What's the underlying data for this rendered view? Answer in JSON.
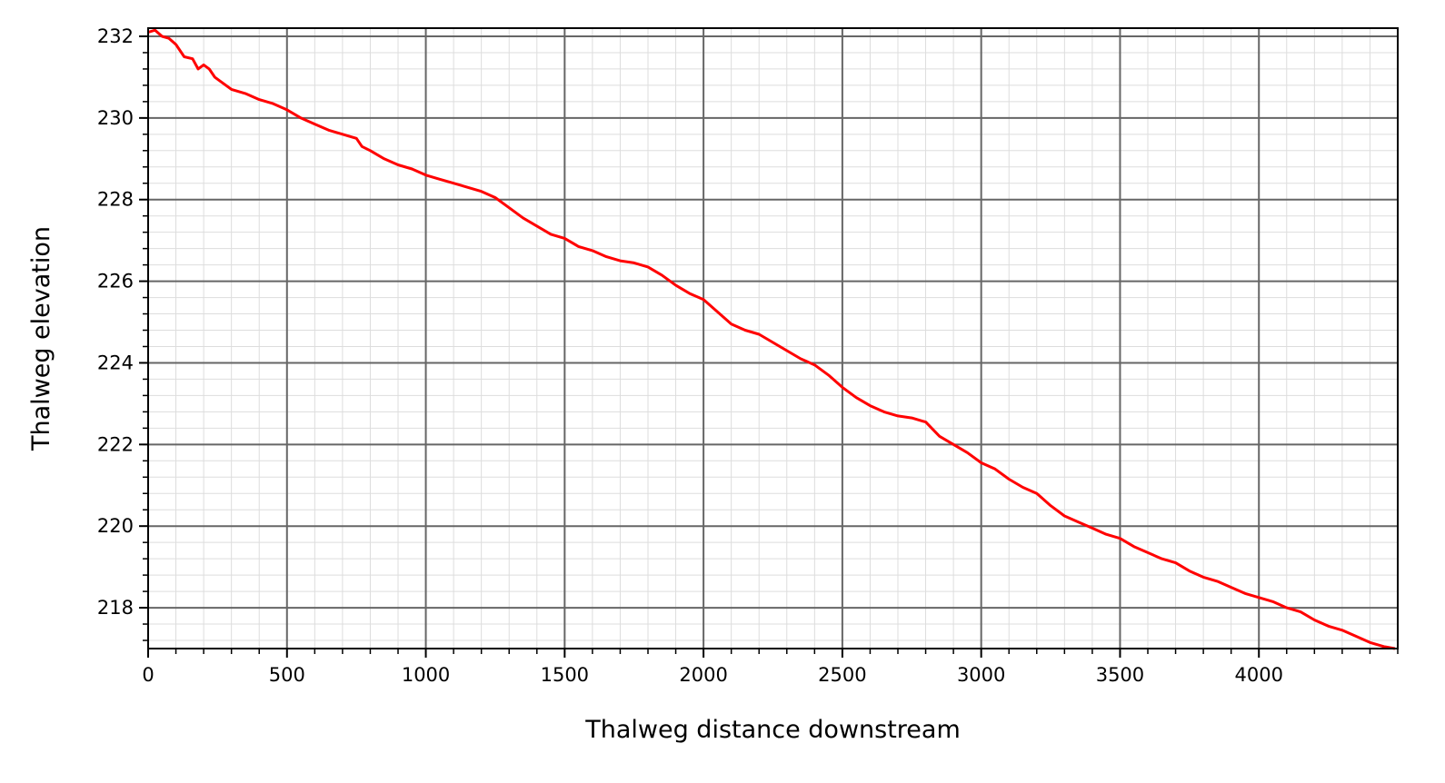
{
  "chart_data": {
    "type": "line",
    "title": "",
    "xlabel": "Thalweg distance downstream",
    "ylabel": "Thalweg elevation",
    "xlim": [
      0,
      4500
    ],
    "ylim": [
      217,
      232.2
    ],
    "x_ticks": [
      0,
      500,
      1000,
      1500,
      2000,
      2500,
      3000,
      3500,
      4000
    ],
    "y_ticks": [
      218,
      220,
      222,
      224,
      226,
      228,
      230,
      232
    ],
    "x_minor_step": 100,
    "y_minor_step": 0.4,
    "grid": "major and minor",
    "legend": "none",
    "colors": {
      "line": "#ff0000",
      "major_grid": "#666666",
      "minor_grid": "#dddddd",
      "axes": "#000000"
    },
    "series": [
      {
        "x": [
          0,
          25,
          50,
          75,
          100,
          130,
          160,
          180,
          200,
          220,
          240,
          260,
          300,
          350,
          400,
          450,
          500,
          550,
          600,
          650,
          700,
          750,
          770,
          800,
          850,
          900,
          950,
          1000,
          1050,
          1100,
          1150,
          1200,
          1250,
          1300,
          1350,
          1400,
          1450,
          1500,
          1550,
          1600,
          1650,
          1700,
          1750,
          1800,
          1850,
          1900,
          1950,
          2000,
          2050,
          2100,
          2150,
          2200,
          2250,
          2300,
          2350,
          2400,
          2450,
          2500,
          2550,
          2600,
          2650,
          2700,
          2750,
          2800,
          2850,
          2900,
          2950,
          3000,
          3050,
          3100,
          3150,
          3200,
          3250,
          3300,
          3350,
          3400,
          3450,
          3500,
          3550,
          3600,
          3650,
          3700,
          3750,
          3800,
          3850,
          3900,
          3950,
          4000,
          4050,
          4100,
          4150,
          4200,
          4250,
          4300,
          4350,
          4400,
          4450,
          4490
        ],
        "y": [
          232.1,
          232.15,
          232.0,
          231.95,
          231.8,
          231.5,
          231.45,
          231.2,
          231.3,
          231.2,
          231.0,
          230.9,
          230.7,
          230.6,
          230.45,
          230.35,
          230.2,
          230.0,
          229.85,
          229.7,
          229.6,
          229.5,
          229.3,
          229.2,
          229.0,
          228.85,
          228.75,
          228.6,
          228.5,
          228.4,
          228.3,
          228.2,
          228.05,
          227.8,
          227.55,
          227.35,
          227.15,
          227.05,
          226.85,
          226.75,
          226.6,
          226.5,
          226.45,
          226.35,
          226.15,
          225.9,
          225.7,
          225.55,
          225.25,
          224.95,
          224.8,
          224.7,
          224.5,
          224.3,
          224.1,
          223.95,
          223.7,
          223.4,
          223.15,
          222.95,
          222.8,
          222.7,
          222.65,
          222.55,
          222.2,
          222.0,
          221.8,
          221.55,
          221.4,
          221.15,
          220.95,
          220.8,
          220.5,
          220.25,
          220.1,
          219.95,
          219.8,
          219.7,
          219.5,
          219.35,
          219.2,
          219.1,
          218.9,
          218.75,
          218.65,
          218.5,
          218.35,
          218.25,
          218.15,
          218.0,
          217.9,
          217.7,
          217.55,
          217.45,
          217.3,
          217.15,
          217.05,
          217.0
        ]
      }
    ]
  }
}
